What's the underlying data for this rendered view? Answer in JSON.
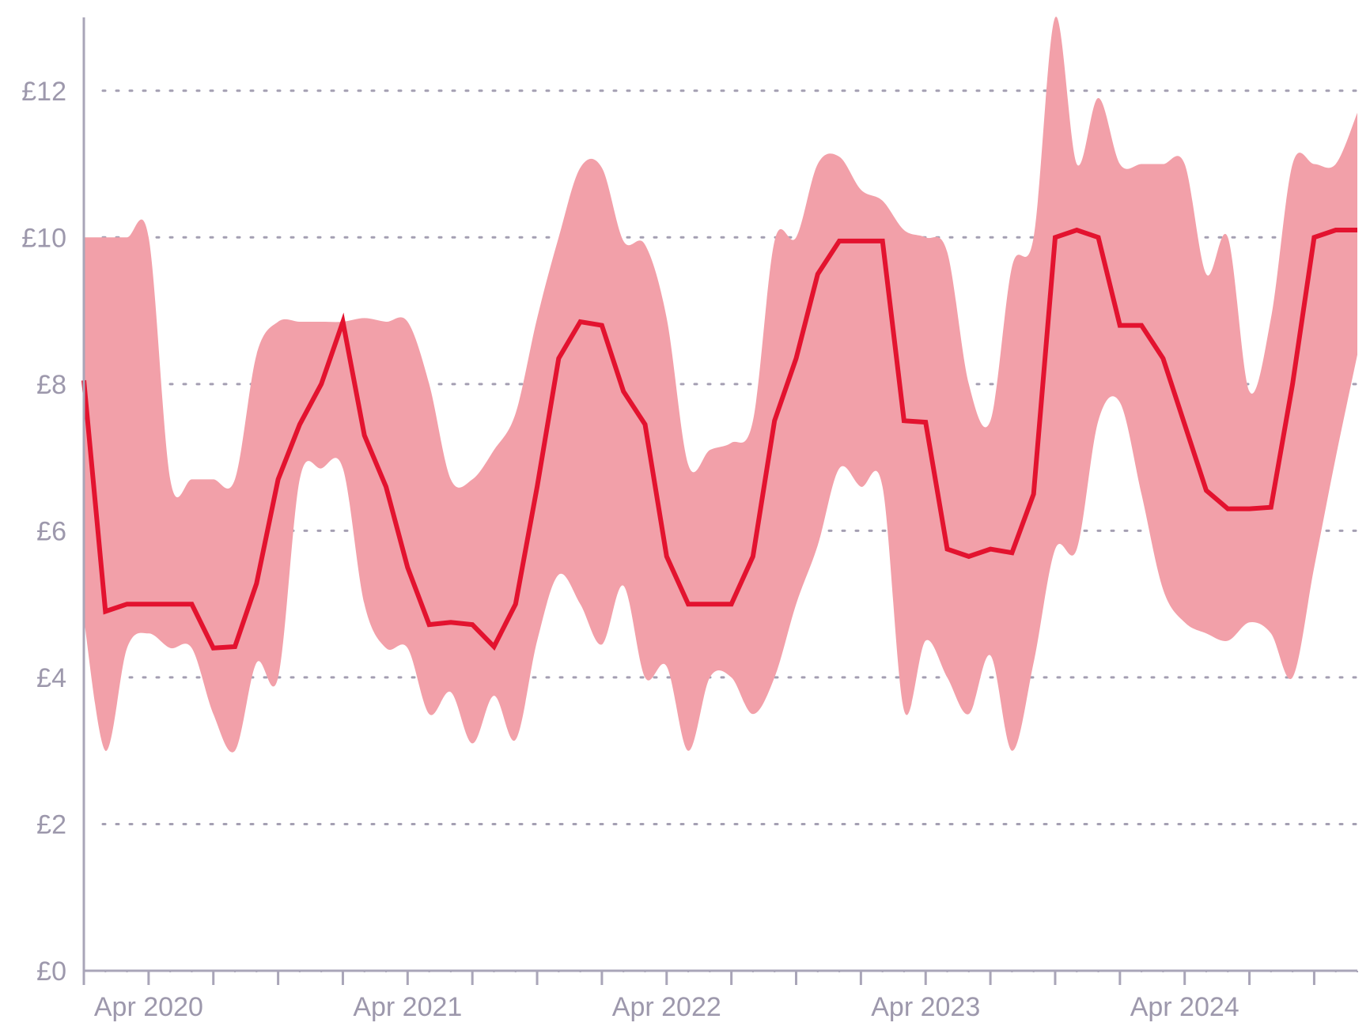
{
  "chart_data": {
    "type": "line",
    "title": "",
    "xlabel": "",
    "ylabel": "",
    "ylim": [
      0,
      13
    ],
    "xlim": [
      "2020-01",
      "2024-12"
    ],
    "grid": "horizontal-dotted",
    "y_ticks": [
      0,
      2,
      4,
      6,
      8,
      10,
      12
    ],
    "y_tick_labels": [
      "£0",
      "£2",
      "£4",
      "£6",
      "£8",
      "£10",
      "£12"
    ],
    "x_tick_labels": [
      {
        "label": "Apr 2020",
        "date": "2020-04"
      },
      {
        "label": "Apr 2021",
        "date": "2021-04"
      },
      {
        "label": "Apr 2022",
        "date": "2022-04"
      },
      {
        "label": "Apr 2023",
        "date": "2023-04"
      },
      {
        "label": "Apr 2024",
        "date": "2024-04"
      }
    ],
    "colors": {
      "line": "#e3132f",
      "band": "#f2a0a9",
      "axis": "#a9a5b8",
      "text": "#9d98ac"
    },
    "series": [
      {
        "type": "line",
        "x": [
          "2020-01",
          "2020-02",
          "2020-03",
          "2020-04",
          "2020-05",
          "2020-06",
          "2020-07",
          "2020-08",
          "2020-09",
          "2020-10",
          "2020-11",
          "2020-12",
          "2021-01",
          "2021-02",
          "2021-03",
          "2021-04",
          "2021-05",
          "2021-06",
          "2021-07",
          "2021-08",
          "2021-09",
          "2021-10",
          "2021-11",
          "2021-12",
          "2022-01",
          "2022-02",
          "2022-03",
          "2022-04",
          "2022-05",
          "2022-06",
          "2022-07",
          "2022-08",
          "2022-09",
          "2022-10",
          "2022-11",
          "2022-12",
          "2023-01",
          "2023-02",
          "2023-03",
          "2023-04",
          "2023-05",
          "2023-06",
          "2023-07",
          "2023-08",
          "2023-09",
          "2023-10",
          "2023-11",
          "2023-12",
          "2024-01",
          "2024-02",
          "2024-03",
          "2024-04",
          "2024-05",
          "2024-06",
          "2024-07",
          "2024-08",
          "2024-09",
          "2024-10",
          "2024-11",
          "2024-12"
        ],
        "values": [
          8.05,
          4.9,
          5.0,
          5.0,
          5.0,
          5.0,
          4.4,
          4.42,
          5.28,
          6.7,
          7.45,
          8.0,
          8.85,
          7.3,
          6.6,
          5.5,
          4.72,
          4.75,
          4.72,
          4.42,
          5.0,
          6.6,
          8.35,
          8.85,
          8.8,
          7.9,
          7.45,
          5.65,
          5.0,
          5.0,
          5.0,
          5.65,
          7.5,
          8.35,
          9.5,
          9.95,
          9.95,
          9.95,
          7.5,
          7.48,
          5.75,
          5.65,
          5.75,
          5.7,
          6.5,
          10.0,
          10.1,
          10.0,
          8.8,
          8.8,
          8.35,
          7.45,
          6.55,
          6.3,
          6.3,
          6.32,
          8.0,
          10.0,
          10.1,
          10.1
        ]
      },
      {
        "type": "band-upper",
        "values": [
          10.0,
          10.0,
          10.0,
          10.0,
          6.7,
          6.7,
          6.7,
          6.7,
          8.4,
          8.85,
          8.85,
          8.85,
          8.85,
          8.9,
          8.85,
          8.85,
          8.0,
          6.7,
          6.7,
          7.1,
          7.6,
          8.9,
          10.0,
          10.95,
          10.95,
          9.95,
          9.9,
          8.9,
          6.9,
          7.1,
          7.2,
          7.5,
          9.95,
          10.0,
          11.0,
          11.1,
          10.65,
          10.5,
          10.1,
          10.0,
          9.8,
          8.0,
          7.5,
          9.6,
          10.0,
          13.0,
          11.0,
          11.9,
          11.0,
          11.0,
          11.0,
          11.0,
          9.5,
          10.0,
          7.9,
          8.9,
          11.0,
          11.0,
          11.0,
          11.7
        ]
      },
      {
        "type": "band-lower",
        "values": [
          4.8,
          3.0,
          4.4,
          4.6,
          4.4,
          4.4,
          3.5,
          3.0,
          4.2,
          4.0,
          6.7,
          6.85,
          6.85,
          5.0,
          4.4,
          4.4,
          3.5,
          3.8,
          3.1,
          3.75,
          3.15,
          4.5,
          5.4,
          5.0,
          4.45,
          5.25,
          4.0,
          4.15,
          3.0,
          4.0,
          4.0,
          3.5,
          4.0,
          5.0,
          5.8,
          6.85,
          6.6,
          6.6,
          3.55,
          4.5,
          4.0,
          3.5,
          4.3,
          3.0,
          4.2,
          5.75,
          5.75,
          7.5,
          7.75,
          6.5,
          5.2,
          4.75,
          4.6,
          4.5,
          4.75,
          4.6,
          4.0,
          5.5,
          7.0,
          8.4
        ]
      }
    ]
  }
}
